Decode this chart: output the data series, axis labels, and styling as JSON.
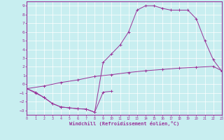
{
  "xlabel": "Windchill (Refroidissement éolien,°C)",
  "bg_color": "#c8eef0",
  "line_color": "#993399",
  "grid_color": "#ffffff",
  "xlim": [
    0,
    23
  ],
  "ylim": [
    -3.5,
    9.5
  ],
  "yticks": [
    9,
    8,
    7,
    6,
    5,
    4,
    3,
    2,
    1,
    0,
    -1,
    -2,
    -3
  ],
  "xticks": [
    0,
    1,
    2,
    3,
    4,
    5,
    6,
    7,
    8,
    9,
    10,
    11,
    12,
    13,
    14,
    15,
    16,
    17,
    18,
    19,
    20,
    21,
    22,
    23
  ],
  "line1_x": [
    0,
    1,
    2,
    3,
    4,
    5,
    6,
    7,
    8,
    9,
    10,
    11,
    12,
    13,
    14,
    15,
    16,
    17,
    18,
    19,
    20,
    21,
    22,
    23
  ],
  "line1_y": [
    -0.5,
    -1.0,
    -1.5,
    -2.2,
    -2.6,
    -2.7,
    -2.8,
    -2.85,
    -3.2,
    2.5,
    3.5,
    4.5,
    6.0,
    8.5,
    9.0,
    9.0,
    8.7,
    8.5,
    8.5,
    8.5,
    7.5,
    5.0,
    2.8,
    1.5
  ],
  "line2_x": [
    0,
    1,
    2,
    3,
    4,
    5,
    6,
    7,
    8,
    9,
    10,
    11,
    12,
    13,
    14,
    15,
    16,
    17,
    18,
    19,
    20,
    21,
    22,
    23
  ],
  "line2_y": [
    -0.5,
    -0.9,
    -1.5,
    -2.2,
    -2.6,
    -2.7,
    -2.8,
    -2.85,
    -3.2,
    -0.9,
    -0.8,
    null,
    null,
    null,
    null,
    null,
    null,
    null,
    null,
    null,
    null,
    null,
    null,
    null
  ],
  "line3_x": [
    0,
    2,
    4,
    6,
    8,
    10,
    12,
    14,
    16,
    18,
    20,
    22,
    23
  ],
  "line3_y": [
    -0.5,
    -0.2,
    0.2,
    0.5,
    0.9,
    1.1,
    1.35,
    1.55,
    1.7,
    1.85,
    1.95,
    2.05,
    1.55
  ]
}
